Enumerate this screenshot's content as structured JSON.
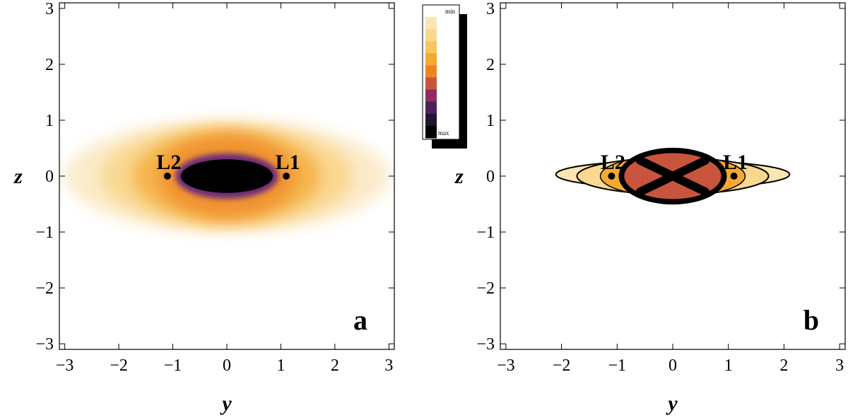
{
  "chart_data": [
    {
      "type": "heatmap",
      "panel_label": "a",
      "xlabel": "y",
      "ylabel": "z",
      "xlim": [
        -3.1,
        3.1
      ],
      "ylim": [
        -3.1,
        3.1
      ],
      "xticks": [
        -3,
        -2,
        -1,
        0,
        1,
        2,
        3
      ],
      "yticks": [
        -3,
        -2,
        -1,
        0,
        1,
        2,
        3
      ],
      "xtick_labels": [
        "−3",
        "−2",
        "−1",
        "0",
        "1",
        "2",
        "3"
      ],
      "ytick_labels": [
        "−3",
        "−2",
        "−1",
        "0",
        "1",
        "2",
        "3"
      ],
      "grid": false,
      "density_region": {
        "center": [
          0,
          0
        ],
        "outer_half_width": 3.0,
        "outer_half_height": 1.0,
        "core_half_width": 0.85,
        "core_half_height": 0.3
      },
      "points": [
        {
          "label": "L2",
          "x": -1.1,
          "y": 0
        },
        {
          "label": "L1",
          "x": 1.1,
          "y": 0
        }
      ]
    },
    {
      "type": "heatmap",
      "panel_label": "b",
      "xlabel": "y",
      "ylabel": "z",
      "xlim": [
        -3.1,
        3.1
      ],
      "ylim": [
        -3.1,
        3.1
      ],
      "xticks": [
        -3,
        -2,
        -1,
        0,
        1,
        2,
        3
      ],
      "yticks": [
        -3,
        -2,
        -1,
        0,
        1,
        2,
        3
      ],
      "xtick_labels": [
        "−3",
        "−2",
        "−1",
        "0",
        "1",
        "2",
        "3"
      ],
      "ytick_labels": [
        "−3",
        "−2",
        "−1",
        "0",
        "1",
        "2",
        "3"
      ],
      "grid": false,
      "contour_style": "filled",
      "density_region": {
        "center": [
          0,
          0
        ],
        "outer_half_width": 2.1,
        "outer_half_height": 0.45,
        "core_half_width": 0.9,
        "core_half_height": 0.35
      },
      "points": [
        {
          "label": "L2",
          "x": -1.1,
          "y": 0
        },
        {
          "label": "L1",
          "x": 1.1,
          "y": 0
        }
      ]
    }
  ],
  "colorbar": {
    "min_label": "min",
    "max_label": "max",
    "colors": [
      "#fbe6b2",
      "#f9d990",
      "#f8c65e",
      "#f5a931",
      "#ec8425",
      "#c9543e",
      "#8f2d5c",
      "#4d2158",
      "#231530",
      "#000000"
    ]
  }
}
